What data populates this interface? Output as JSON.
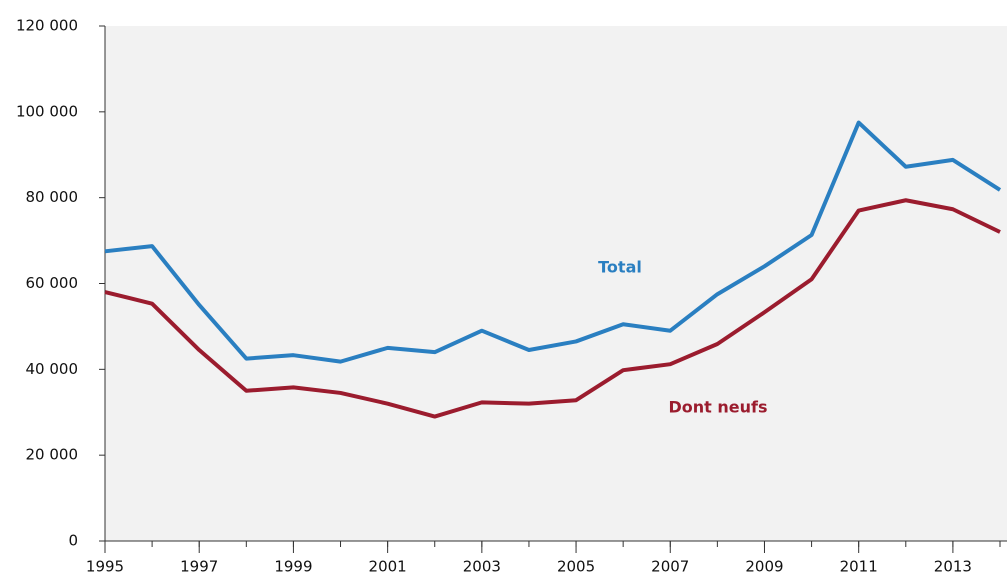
{
  "chart_data": {
    "type": "line",
    "x": [
      1995,
      1996,
      1997,
      1998,
      1999,
      2000,
      2001,
      2002,
      2003,
      2004,
      2005,
      2006,
      2007,
      2008,
      2009,
      2010,
      2011,
      2012,
      2013,
      2014
    ],
    "series": [
      {
        "name": "Total",
        "color": "#2a7fc1",
        "values": [
          67500,
          68700,
          55000,
          42500,
          43300,
          41800,
          45000,
          44000,
          49000,
          44500,
          46500,
          50500,
          49000,
          57500,
          64000,
          71300,
          97500,
          87200,
          88800,
          81800
        ]
      },
      {
        "name": "Dont neufs",
        "color": "#9b1c2e",
        "values": [
          58000,
          55300,
          44500,
          35000,
          35800,
          34500,
          32000,
          29000,
          32300,
          32000,
          32800,
          39800,
          41200,
          45900,
          53300,
          61000,
          77000,
          79400,
          77300,
          72000
        ]
      }
    ],
    "xlim": [
      1995,
      2014
    ],
    "xticks": [
      1995,
      1997,
      1999,
      2001,
      2003,
      2005,
      2007,
      2009,
      2011,
      2013
    ],
    "ylim": [
      0,
      120000
    ],
    "yticks": [
      {
        "value": 0,
        "label": "0"
      },
      {
        "value": 20000,
        "label": "20 000"
      },
      {
        "value": 40000,
        "label": "40 000"
      },
      {
        "value": 60000,
        "label": "60 000"
      },
      {
        "value": 80000,
        "label": "80 000"
      },
      {
        "value": 100000,
        "label": "100 000"
      },
      {
        "value": 120000,
        "label": "120 000"
      }
    ],
    "grid": false
  }
}
